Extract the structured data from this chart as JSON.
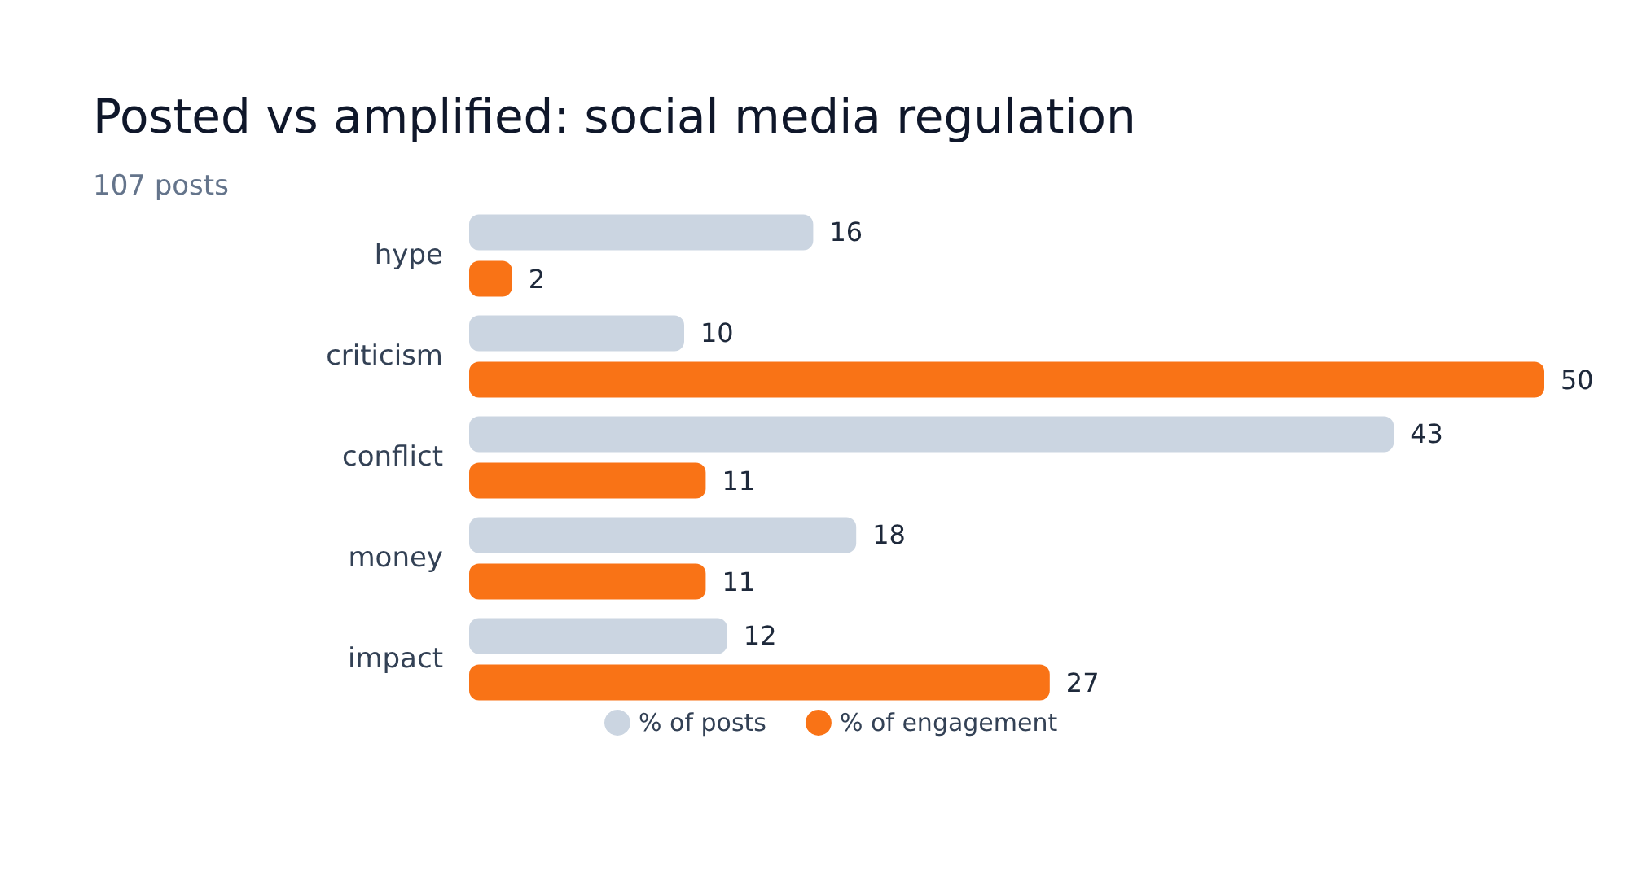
{
  "chart_data": {
    "type": "bar",
    "orientation": "horizontal",
    "title": "Posted vs amplified: social media regulation",
    "subtitle": "107 posts",
    "categories": [
      "hype",
      "criticism",
      "conflict",
      "money",
      "impact"
    ],
    "series": [
      {
        "name": "% of posts",
        "color": "#cbd5e1",
        "values": [
          16,
          10,
          43,
          18,
          12
        ]
      },
      {
        "name": "% of engagement",
        "color": "#f97316",
        "values": [
          2,
          50,
          11,
          11,
          27
        ]
      }
    ],
    "data_labels": true,
    "legend": "bottom",
    "grid": false
  }
}
